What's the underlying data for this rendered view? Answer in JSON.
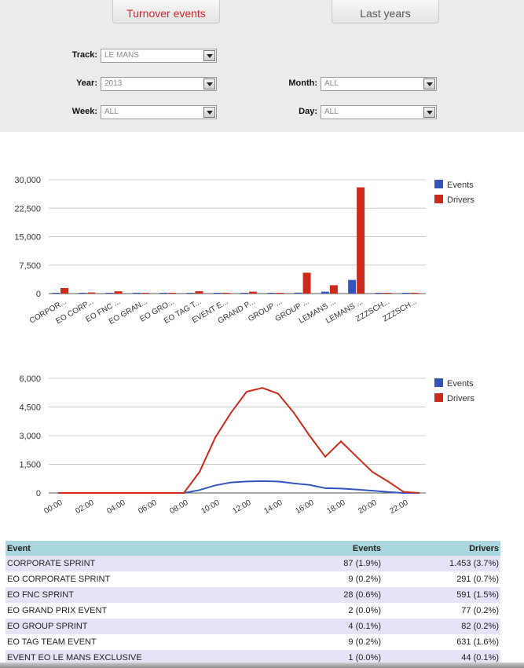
{
  "tabs": {
    "turnover": "Turnover events",
    "last_years": "Last years"
  },
  "filters": {
    "track_label": "Track:",
    "track_value": "LE MANS",
    "year_label": "Year:",
    "year_value": "2013",
    "month_label": "Month:",
    "month_value": "ALL",
    "week_label": "Week:",
    "week_value": "ALL",
    "day_label": "Day:",
    "day_value": "ALL"
  },
  "colors": {
    "events": "#3355bb",
    "drivers": "#cc2a1a",
    "active_tab": "#d2232a",
    "table_header": "#a9d6df"
  },
  "chart_data": [
    {
      "type": "bar",
      "categories": [
        "CORPOR...",
        "EO CORP...",
        "EO FNC ...",
        "EO GRAN...",
        "EO GRO...",
        "EO TAG T...",
        "EVENT E...",
        "GRAND P...",
        "GROUP ...",
        "GROUP ...",
        "LEMANS ...",
        "LEMANS ...",
        "ZZZSCH...",
        "ZZZSCH..."
      ],
      "series": [
        {
          "name": "Events",
          "values": [
            87,
            9,
            28,
            2,
            4,
            9,
            1,
            20,
            15,
            250,
            500,
            3600,
            5,
            3
          ]
        },
        {
          "name": "Drivers",
          "values": [
            1453,
            291,
            591,
            77,
            82,
            631,
            44,
            500,
            100,
            5500,
            2200,
            28000,
            40,
            20
          ]
        }
      ],
      "yticks": [
        "30,000",
        "22,500",
        "15,000",
        "7,500",
        "0"
      ],
      "ylim": [
        0,
        30000
      ],
      "legend": "top-right"
    },
    {
      "type": "line",
      "x": [
        "00:00",
        "01:00",
        "02:00",
        "03:00",
        "04:00",
        "05:00",
        "06:00",
        "07:00",
        "08:00",
        "09:00",
        "10:00",
        "11:00",
        "12:00",
        "13:00",
        "14:00",
        "15:00",
        "16:00",
        "17:00",
        "18:00",
        "19:00",
        "20:00",
        "21:00",
        "22:00",
        "23:00"
      ],
      "xticks": [
        "00:00",
        "02:00",
        "04:00",
        "06:00",
        "08:00",
        "10:00",
        "12:00",
        "14:00",
        "16:00",
        "18:00",
        "20:00",
        "22:00"
      ],
      "series": [
        {
          "name": "Events",
          "values": [
            0,
            0,
            0,
            0,
            0,
            0,
            0,
            0,
            0,
            150,
            400,
            550,
            600,
            620,
            600,
            500,
            420,
            250,
            230,
            180,
            120,
            50,
            0,
            0
          ]
        },
        {
          "name": "Drivers",
          "values": [
            0,
            0,
            0,
            0,
            0,
            0,
            0,
            0,
            0,
            1100,
            2900,
            4200,
            5300,
            5500,
            5200,
            4200,
            3000,
            1900,
            2700,
            1900,
            1100,
            600,
            50,
            0
          ]
        }
      ],
      "yticks": [
        "6,000",
        "4,500",
        "3,000",
        "1,500",
        "0"
      ],
      "ylim": [
        0,
        6000
      ],
      "legend": "top-right"
    }
  ],
  "table": {
    "headers": {
      "event": "Event",
      "events": "Events",
      "drivers": "Drivers"
    },
    "rows": [
      {
        "event": "CORPORATE SPRINT",
        "events": "87  (1.9%)",
        "drivers": "1.453  (3.7%)"
      },
      {
        "event": "EO CORPORATE SPRINT",
        "events": "9  (0.2%)",
        "drivers": "291  (0.7%)"
      },
      {
        "event": "EO FNC SPRINT",
        "events": "28  (0.6%)",
        "drivers": "591  (1.5%)"
      },
      {
        "event": "EO GRAND PRIX EVENT",
        "events": "2  (0.0%)",
        "drivers": "77  (0.2%)"
      },
      {
        "event": "EO GROUP SPRINT",
        "events": "4  (0.1%)",
        "drivers": "82  (0.2%)"
      },
      {
        "event": "EO TAG TEAM EVENT",
        "events": "9  (0.2%)",
        "drivers": "631  (1.6%)"
      },
      {
        "event": "EVENT EO LE MANS EXCLUSIVE",
        "events": "1  (0.0%)",
        "drivers": "44  (0.1%)"
      }
    ]
  }
}
